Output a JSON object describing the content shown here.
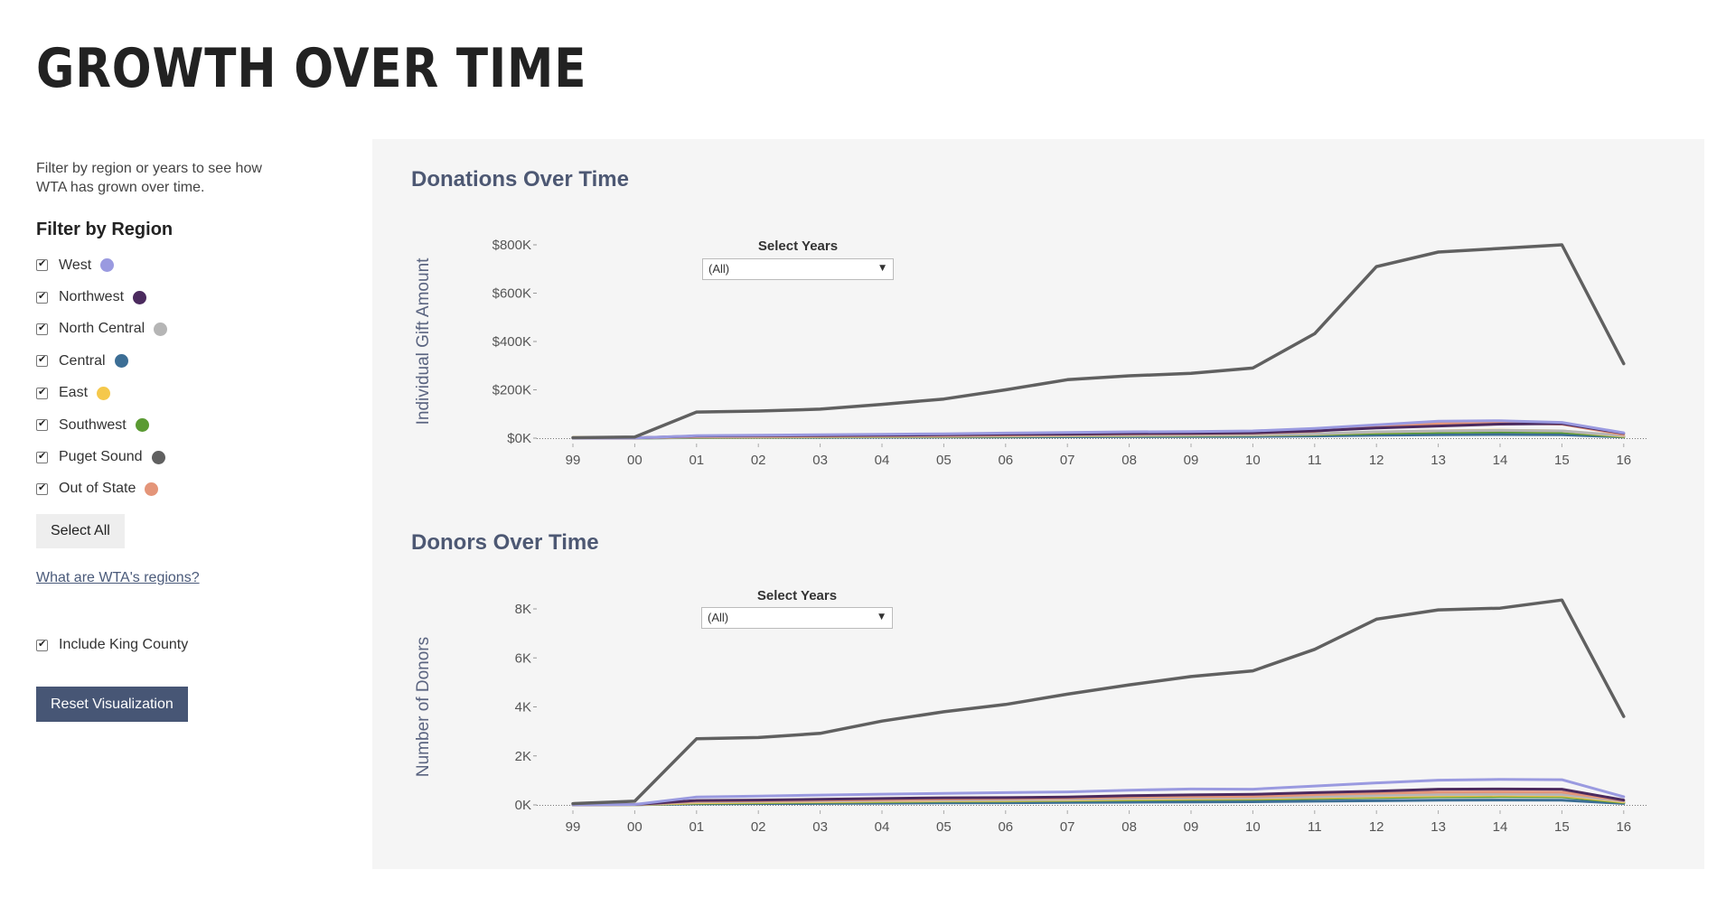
{
  "page_title": "GROWTH OVER TIME",
  "sidebar": {
    "intro": "Filter by region or years to see how WTA has grown over time.",
    "filter_heading": "Filter by Region",
    "regions": [
      {
        "label": "West",
        "color": "#9a9ae0",
        "checked": true
      },
      {
        "label": "Northwest",
        "color": "#4b2a5e",
        "checked": true
      },
      {
        "label": "North Central",
        "color": "#b5b5b5",
        "checked": true
      },
      {
        "label": "Central",
        "color": "#3c6e95",
        "checked": true
      },
      {
        "label": "East",
        "color": "#f5c84b",
        "checked": true
      },
      {
        "label": "Southwest",
        "color": "#5a9a32",
        "checked": true
      },
      {
        "label": "Puget Sound",
        "color": "#606060",
        "checked": true
      },
      {
        "label": "Out of State",
        "color": "#e49579",
        "checked": true
      }
    ],
    "select_all_label": "Select All",
    "regions_link": "What are WTA's regions?",
    "king_county_label": "Include King County",
    "king_county_checked": true,
    "reset_label": "Reset Visualization"
  },
  "year_filter": {
    "label": "Select Years",
    "value": "(All)"
  },
  "chart_data": [
    {
      "type": "line",
      "title": "Donations Over Time",
      "ylabel": "Individual Gift Amount",
      "xlabel": "",
      "x": [
        "99",
        "00",
        "01",
        "02",
        "03",
        "04",
        "05",
        "06",
        "07",
        "08",
        "09",
        "10",
        "11",
        "12",
        "13",
        "14",
        "15",
        "16"
      ],
      "yticks": [
        "$0K",
        "$200K",
        "$400K",
        "$600K",
        "$800K"
      ],
      "ylim": [
        0,
        800000
      ],
      "series": [
        {
          "name": "Puget Sound",
          "color": "#606060",
          "values": [
            2000,
            5000,
            108000,
            112000,
            120000,
            140000,
            162000,
            200000,
            242000,
            258000,
            268000,
            290000,
            432000,
            710000,
            770000,
            785000,
            800000,
            308000
          ]
        },
        {
          "name": "West",
          "color": "#9a9ae0",
          "values": [
            500,
            1000,
            10000,
            12000,
            14000,
            16000,
            18000,
            21000,
            23000,
            26000,
            27000,
            30000,
            40000,
            55000,
            70000,
            72000,
            65000,
            22000
          ]
        },
        {
          "name": "Northwest",
          "color": "#4b2a5e",
          "values": [
            500,
            1000,
            9000,
            10000,
            11000,
            12000,
            14000,
            16000,
            17000,
            19000,
            20000,
            22000,
            30000,
            42000,
            50000,
            58000,
            60000,
            20000
          ]
        },
        {
          "name": "Out of State",
          "color": "#e49579",
          "values": [
            300,
            800,
            7000,
            8000,
            9000,
            10000,
            11000,
            13000,
            15000,
            17000,
            18000,
            20000,
            28000,
            50000,
            60000,
            62000,
            58000,
            15000
          ]
        },
        {
          "name": "North Central",
          "color": "#b5b5b5",
          "values": [
            200,
            500,
            5000,
            6000,
            7000,
            8000,
            9000,
            10000,
            11000,
            12000,
            13000,
            14000,
            18000,
            26000,
            30000,
            32000,
            30000,
            10000
          ]
        },
        {
          "name": "East",
          "color": "#f5c84b",
          "values": [
            3000,
            2000,
            4000,
            5000,
            6000,
            7000,
            8000,
            9000,
            10000,
            11000,
            12000,
            13000,
            17000,
            25000,
            30000,
            33000,
            30000,
            8000
          ]
        },
        {
          "name": "Southwest",
          "color": "#5a9a32",
          "values": [
            200,
            500,
            3000,
            4000,
            5000,
            6000,
            7000,
            8000,
            9000,
            10000,
            11000,
            12000,
            15000,
            20000,
            24000,
            26000,
            24000,
            6000
          ]
        },
        {
          "name": "Central",
          "color": "#3c6e95",
          "values": [
            200,
            400,
            2000,
            3000,
            3500,
            4000,
            4500,
            5000,
            5500,
            6000,
            6500,
            7000,
            9000,
            12000,
            14000,
            15000,
            14000,
            5000
          ]
        }
      ]
    },
    {
      "type": "line",
      "title": "Donors Over Time",
      "ylabel": "Number of Donors",
      "xlabel": "",
      "x": [
        "99",
        "00",
        "01",
        "02",
        "03",
        "04",
        "05",
        "06",
        "07",
        "08",
        "09",
        "10",
        "11",
        "12",
        "13",
        "14",
        "15",
        "16"
      ],
      "yticks": [
        "0K",
        "2K",
        "4K",
        "6K",
        "8K"
      ],
      "ylim": [
        0,
        8000
      ],
      "series": [
        {
          "name": "Puget Sound",
          "color": "#606060",
          "values": [
            50,
            150,
            2700,
            2750,
            2920,
            3420,
            3800,
            4100,
            4520,
            4900,
            5240,
            5470,
            6350,
            7580,
            7960,
            8030,
            8360,
            3610
          ]
        },
        {
          "name": "West",
          "color": "#9a9ae0",
          "values": [
            10,
            20,
            320,
            360,
            400,
            440,
            470,
            500,
            530,
            600,
            650,
            640,
            770,
            900,
            1010,
            1040,
            1030,
            330
          ]
        },
        {
          "name": "Northwest",
          "color": "#4b2a5e",
          "values": [
            10,
            20,
            180,
            200,
            230,
            260,
            290,
            300,
            320,
            380,
            410,
            430,
            500,
            560,
            640,
            650,
            640,
            200
          ]
        },
        {
          "name": "Out of State",
          "color": "#e49579",
          "values": [
            10,
            20,
            150,
            170,
            190,
            210,
            240,
            260,
            280,
            320,
            340,
            350,
            420,
            480,
            520,
            530,
            520,
            180
          ]
        },
        {
          "name": "North Central",
          "color": "#b5b5b5",
          "values": [
            5,
            10,
            120,
            140,
            160,
            180,
            200,
            210,
            230,
            260,
            280,
            290,
            330,
            380,
            420,
            430,
            420,
            150
          ]
        },
        {
          "name": "East",
          "color": "#f5c84b",
          "values": [
            5,
            10,
            90,
            110,
            130,
            150,
            170,
            180,
            200,
            230,
            250,
            260,
            300,
            340,
            380,
            390,
            380,
            120
          ]
        },
        {
          "name": "Southwest",
          "color": "#5a9a32",
          "values": [
            5,
            10,
            70,
            90,
            110,
            130,
            150,
            160,
            180,
            200,
            220,
            230,
            260,
            300,
            330,
            340,
            330,
            100
          ]
        },
        {
          "name": "Central",
          "color": "#3c6e95",
          "values": [
            5,
            10,
            40,
            50,
            60,
            70,
            80,
            90,
            100,
            110,
            120,
            130,
            150,
            170,
            190,
            200,
            190,
            60
          ]
        }
      ]
    }
  ]
}
